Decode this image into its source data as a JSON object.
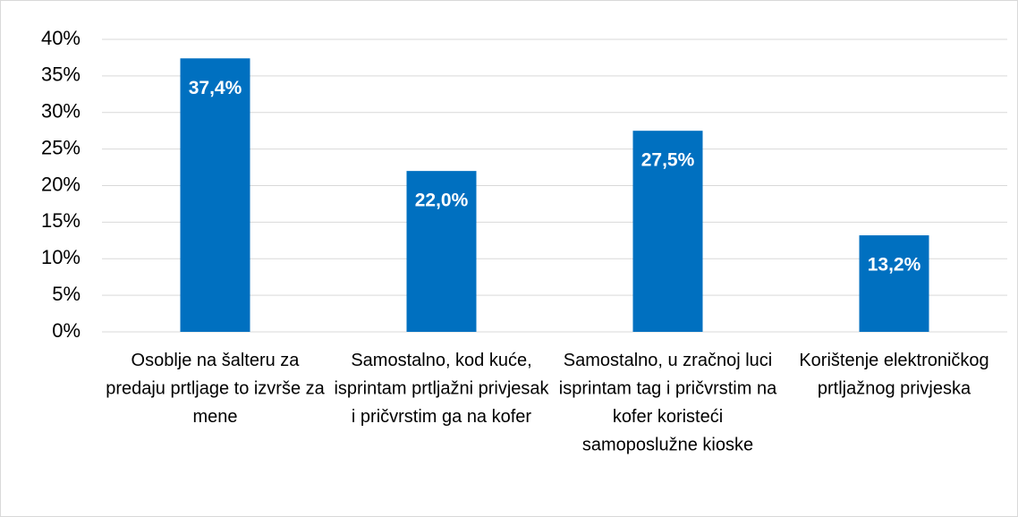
{
  "chart_data": {
    "type": "bar",
    "categories": [
      "Osoblje na šalteru za predaju prtljage to izvrše za mene",
      "Samostalno, kod kuće, isprintam prtljažni privjesak i pričvrstim ga na kofer",
      "Samostalno, u zračnoj luci isprintam tag i pričvrstim na kofer koristeći samoposlužne kioske",
      "Korištenje elektroničkog prtljažnog privjeska"
    ],
    "values": [
      37.4,
      22.0,
      27.5,
      13.2
    ],
    "value_labels": [
      "37,4%",
      "22,0%",
      "27,5%",
      "13,2%"
    ],
    "color": "#0070c0",
    "ylim": [
      0,
      40
    ],
    "yticks": [
      {
        "value": 0,
        "label": "0%"
      },
      {
        "value": 5,
        "label": "5%"
      },
      {
        "value": 10,
        "label": "10%"
      },
      {
        "value": 15,
        "label": "15%"
      },
      {
        "value": 20,
        "label": "20%"
      },
      {
        "value": 25,
        "label": "25%"
      },
      {
        "value": 30,
        "label": "30%"
      },
      {
        "value": 35,
        "label": "35%"
      },
      {
        "value": 40,
        "label": "40%"
      }
    ],
    "grid": true
  }
}
